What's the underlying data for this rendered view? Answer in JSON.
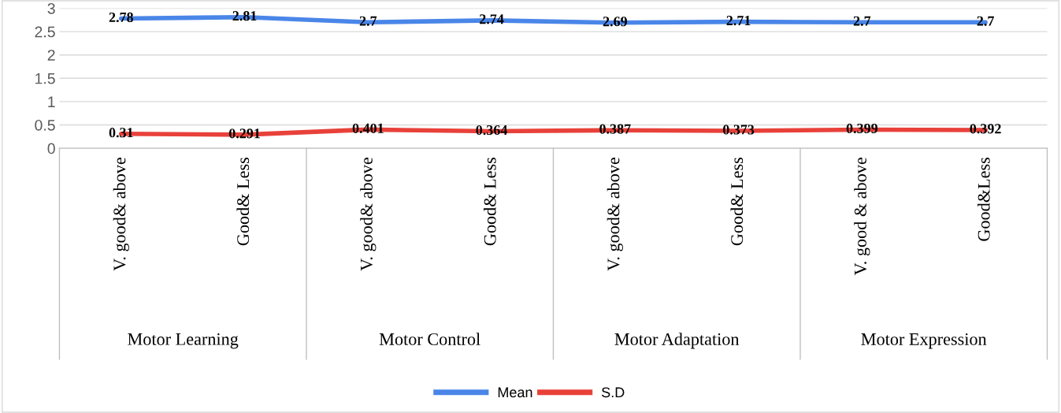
{
  "chart_data": {
    "type": "line",
    "categories": [
      "V. good& above",
      "Good& Less",
      "V. good& above",
      "Good& Less",
      "V. good& above",
      "Good& Less",
      "V. good & above",
      "Good&Less"
    ],
    "annotations": [
      "Motor Learning",
      "Motor Control",
      "Motor Adaptation",
      "Motor Expression"
    ],
    "series": [
      {
        "name": "Mean",
        "color": "#4a86e8",
        "values": [
          2.78,
          2.81,
          2.7,
          2.74,
          2.69,
          2.71,
          2.7,
          2.7
        ]
      },
      {
        "name": "S.D",
        "color": "#e8413a",
        "values": [
          0.31,
          0.291,
          0.401,
          0.364,
          0.387,
          0.373,
          0.399,
          0.392
        ]
      }
    ],
    "ylim": [
      0,
      3
    ],
    "yticks": [
      0,
      0.5,
      1,
      1.5,
      2,
      2.5,
      3
    ],
    "grid": "y",
    "legend": "bottom",
    "data_labels": true,
    "marker": "none",
    "line_style": "solid"
  }
}
